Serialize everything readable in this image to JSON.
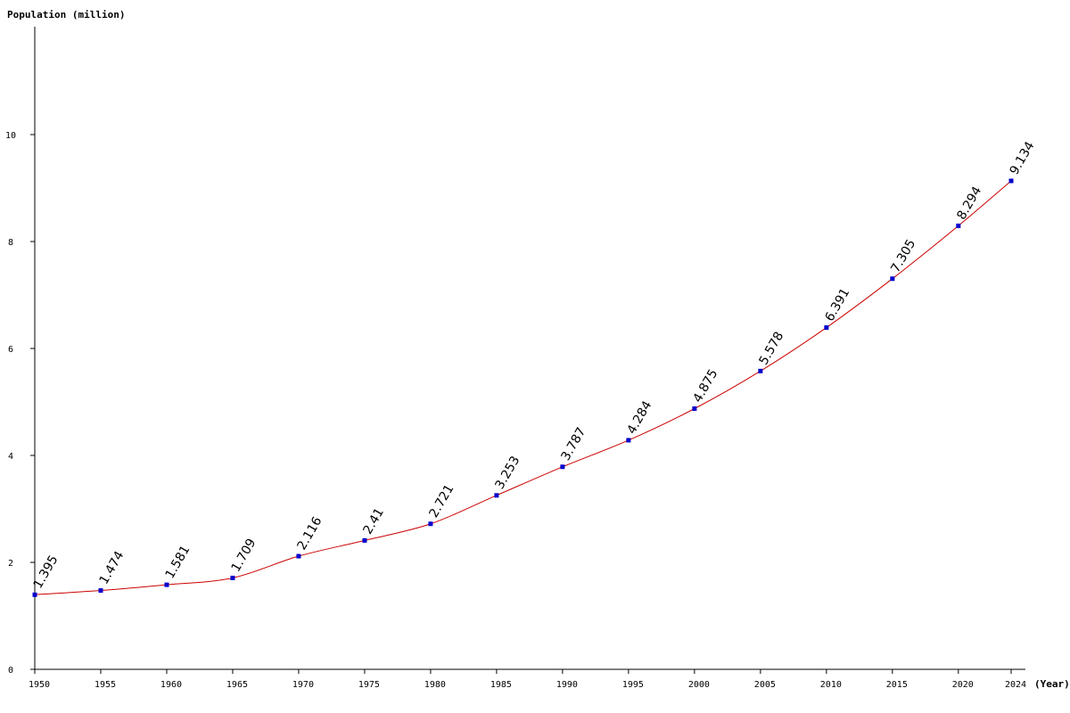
{
  "chart_data": {
    "type": "line",
    "ylabel": "Population (million)",
    "xlabel": "(Year)",
    "x": [
      1950,
      1955,
      1960,
      1965,
      1970,
      1975,
      1980,
      1985,
      1990,
      1995,
      2000,
      2005,
      2010,
      2015,
      2020,
      2024
    ],
    "values": [
      1.395,
      1.474,
      1.581,
      1.709,
      2.116,
      2.41,
      2.721,
      3.253,
      3.787,
      4.284,
      4.875,
      5.578,
      6.391,
      7.305,
      8.294,
      9.134
    ],
    "data_labels": [
      "1.395",
      "1.474",
      "1.581",
      "1.709",
      "2.116",
      "2.41",
      "2.721",
      "3.253",
      "3.787",
      "4.284",
      "4.875",
      "5.578",
      "6.391",
      "7.305",
      "8.294",
      "9.134"
    ],
    "x_tick_labels": [
      "1950",
      "1955",
      "1960",
      "1965",
      "1970",
      "1975",
      "1980",
      "1985",
      "1990",
      "1995",
      "2000",
      "2005",
      "2010",
      "2015",
      "2020",
      "2024"
    ],
    "y_ticks": [
      0,
      2,
      4,
      6,
      8,
      10
    ],
    "y_tick_labels": [
      "0",
      "2",
      "4",
      "6",
      "8",
      "10"
    ],
    "ylim": [
      0,
      12
    ],
    "xlim": [
      1950,
      2024
    ],
    "grid": false,
    "legend": "none",
    "colors": {
      "line": "#cc0000",
      "marker": "#0000cc",
      "axis": "#000000"
    }
  }
}
